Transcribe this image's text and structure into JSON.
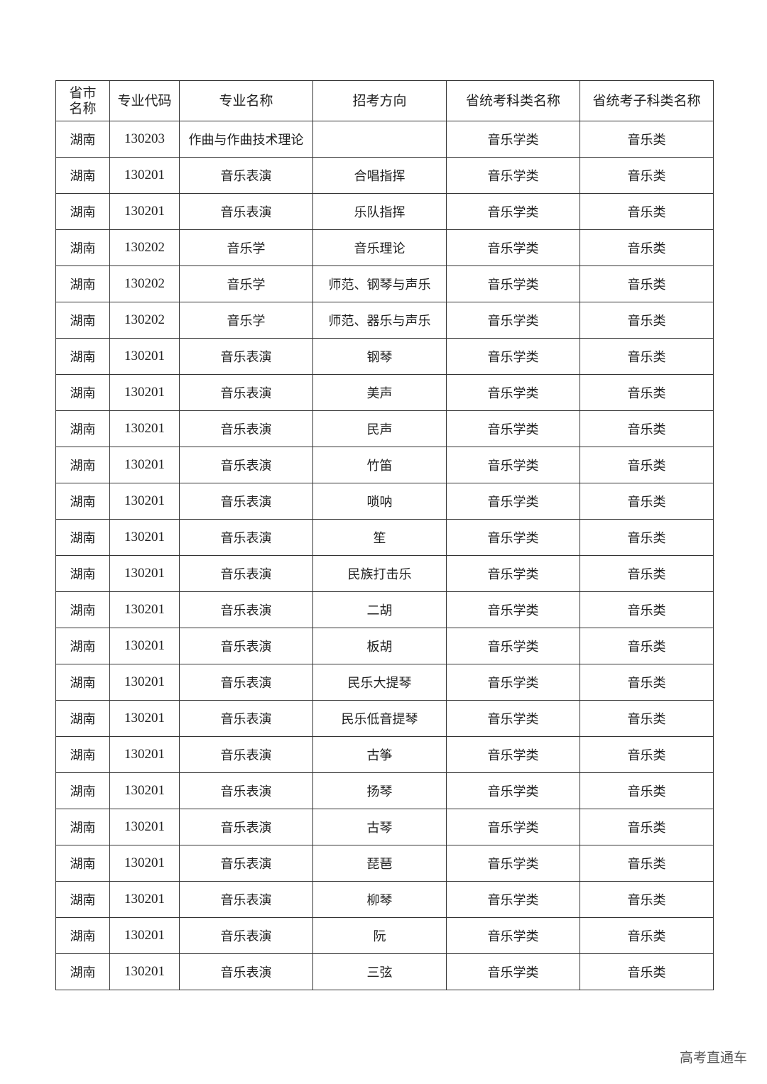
{
  "table": {
    "headers": [
      "省市\n名称",
      "专业代码",
      "专业名称",
      "招考方向",
      "省统考科类名称",
      "省统考子科类名称"
    ],
    "rows": [
      [
        "湖南",
        "130203",
        "作曲与作曲技术理论",
        "",
        "音乐学类",
        "音乐类"
      ],
      [
        "湖南",
        "130201",
        "音乐表演",
        "合唱指挥",
        "音乐学类",
        "音乐类"
      ],
      [
        "湖南",
        "130201",
        "音乐表演",
        "乐队指挥",
        "音乐学类",
        "音乐类"
      ],
      [
        "湖南",
        "130202",
        "音乐学",
        "音乐理论",
        "音乐学类",
        "音乐类"
      ],
      [
        "湖南",
        "130202",
        "音乐学",
        "师范、钢琴与声乐",
        "音乐学类",
        "音乐类"
      ],
      [
        "湖南",
        "130202",
        "音乐学",
        "师范、器乐与声乐",
        "音乐学类",
        "音乐类"
      ],
      [
        "湖南",
        "130201",
        "音乐表演",
        "钢琴",
        "音乐学类",
        "音乐类"
      ],
      [
        "湖南",
        "130201",
        "音乐表演",
        "美声",
        "音乐学类",
        "音乐类"
      ],
      [
        "湖南",
        "130201",
        "音乐表演",
        "民声",
        "音乐学类",
        "音乐类"
      ],
      [
        "湖南",
        "130201",
        "音乐表演",
        "竹笛",
        "音乐学类",
        "音乐类"
      ],
      [
        "湖南",
        "130201",
        "音乐表演",
        "唢呐",
        "音乐学类",
        "音乐类"
      ],
      [
        "湖南",
        "130201",
        "音乐表演",
        "笙",
        "音乐学类",
        "音乐类"
      ],
      [
        "湖南",
        "130201",
        "音乐表演",
        "民族打击乐",
        "音乐学类",
        "音乐类"
      ],
      [
        "湖南",
        "130201",
        "音乐表演",
        "二胡",
        "音乐学类",
        "音乐类"
      ],
      [
        "湖南",
        "130201",
        "音乐表演",
        "板胡",
        "音乐学类",
        "音乐类"
      ],
      [
        "湖南",
        "130201",
        "音乐表演",
        "民乐大提琴",
        "音乐学类",
        "音乐类"
      ],
      [
        "湖南",
        "130201",
        "音乐表演",
        "民乐低音提琴",
        "音乐学类",
        "音乐类"
      ],
      [
        "湖南",
        "130201",
        "音乐表演",
        "古筝",
        "音乐学类",
        "音乐类"
      ],
      [
        "湖南",
        "130201",
        "音乐表演",
        "扬琴",
        "音乐学类",
        "音乐类"
      ],
      [
        "湖南",
        "130201",
        "音乐表演",
        "古琴",
        "音乐学类",
        "音乐类"
      ],
      [
        "湖南",
        "130201",
        "音乐表演",
        "琵琶",
        "音乐学类",
        "音乐类"
      ],
      [
        "湖南",
        "130201",
        "音乐表演",
        "柳琴",
        "音乐学类",
        "音乐类"
      ],
      [
        "湖南",
        "130201",
        "音乐表演",
        "阮",
        "音乐学类",
        "音乐类"
      ],
      [
        "湖南",
        "130201",
        "音乐表演",
        "三弦",
        "音乐学类",
        "音乐类"
      ]
    ]
  },
  "footer": {
    "text": "高考直通车"
  }
}
